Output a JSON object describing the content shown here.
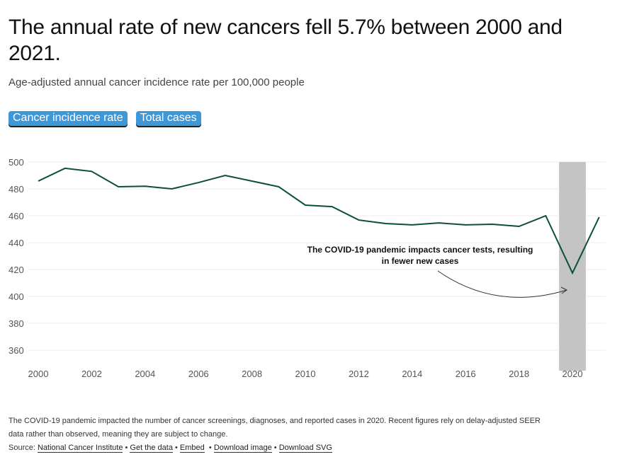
{
  "title": "The annual rate of new cancers fell 5.7% between 2000 and 2021.",
  "subtitle": "Age-adjusted annual cancer incidence rate per 100,000 people",
  "buttons": [
    "Cancer incidence rate",
    "Total cases"
  ],
  "chart_data": {
    "type": "line",
    "x": [
      2000,
      2001,
      2002,
      2003,
      2004,
      2005,
      2006,
      2007,
      2008,
      2009,
      2010,
      2011,
      2012,
      2013,
      2014,
      2015,
      2016,
      2017,
      2018,
      2019,
      2020,
      2021
    ],
    "values": [
      485.8,
      495.3,
      493,
      481.6,
      482,
      480,
      484.7,
      490,
      485.8,
      481.6,
      467.9,
      466.8,
      456.8,
      454.2,
      453.2,
      454.7,
      453.2,
      453.7,
      452.1,
      460,
      417.4,
      459
    ],
    "ylim": [
      350,
      500
    ],
    "yticks": [
      360,
      380,
      400,
      420,
      440,
      460,
      480,
      500
    ],
    "xticks": [
      2000,
      2002,
      2004,
      2006,
      2008,
      2010,
      2012,
      2014,
      2016,
      2018,
      2020
    ],
    "highlight": [
      2019.5,
      2020.5
    ],
    "annotation": [
      "The COVID-19 pandemic impacts cancer tests, resulting",
      "in fewer new cases"
    ],
    "line_color": "#0b4f3c"
  },
  "footer": {
    "note1": "The COVID-19 pandemic impacted the number of cancer screenings, diagnoses, and reported cases in 2020. Recent figures rely on delay-adjusted SEER",
    "note2": "data rather than observed, meaning they are subject to change.",
    "source_label": "Source:",
    "links": [
      "National Cancer Institute",
      "Get the data",
      "Embed",
      "Download image",
      "Download SVG"
    ]
  }
}
